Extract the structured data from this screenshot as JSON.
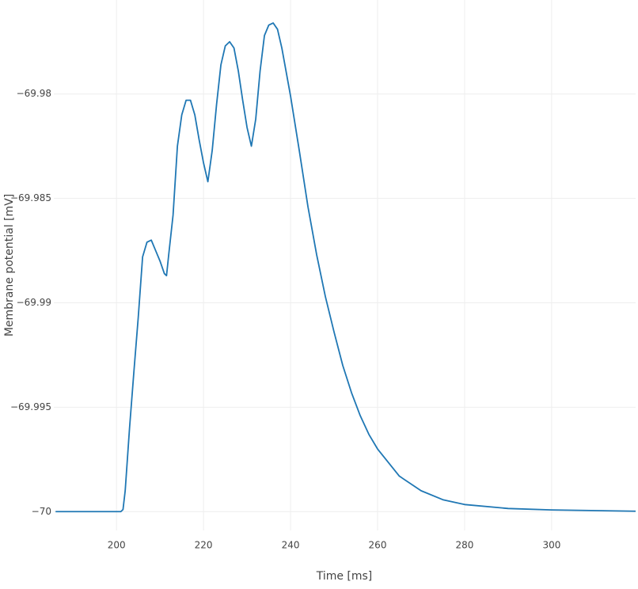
{
  "chart_data": {
    "type": "line",
    "x_label": "Time [ms]",
    "y_label": "Membrane potential [mV]",
    "x": [
      186,
      201,
      201.5,
      202,
      203,
      204,
      205,
      206,
      207,
      208,
      209,
      210,
      211,
      211.5,
      212,
      213,
      214,
      215,
      216,
      217,
      218,
      219,
      220,
      221,
      222,
      223,
      224,
      225,
      226,
      227,
      228,
      229,
      230,
      231,
      232,
      233,
      234,
      235,
      236,
      237,
      238,
      240,
      242,
      244,
      246,
      248,
      250,
      252,
      254,
      256,
      258,
      260,
      265,
      270,
      275,
      280,
      290,
      300,
      319.3
    ],
    "series": [
      {
        "color": "#1f77b4",
        "values": [
          -70,
          -70,
          -69.9999,
          -69.999,
          -69.996,
          -69.9933,
          -69.9907,
          -69.9878,
          -69.9871,
          -69.987,
          -69.9875,
          -69.988,
          -69.9886,
          -69.9887,
          -69.9877,
          -69.9858,
          -69.9825,
          -69.981,
          -69.9803,
          -69.9803,
          -69.981,
          -69.9822,
          -69.9833,
          -69.9842,
          -69.9827,
          -69.9805,
          -69.9786,
          -69.9777,
          -69.9775,
          -69.9778,
          -69.9789,
          -69.9803,
          -69.9816,
          -69.9825,
          -69.9812,
          -69.9789,
          -69.9772,
          -69.9767,
          -69.9766,
          -69.9769,
          -69.9778,
          -69.9801,
          -69.9827,
          -69.9854,
          -69.9877,
          -69.9897,
          -69.9914,
          -69.993,
          -69.9943,
          -69.9954,
          -69.9963,
          -69.997,
          -69.9983,
          -69.999,
          -69.99943,
          -69.99966,
          -69.99985,
          -69.99992,
          -69.99998
        ]
      }
    ],
    "xlim": [
      185.6,
      319.3
    ],
    "ylim": [
      -70.0009,
      -69.9755
    ],
    "xticks": [
      200,
      220,
      240,
      260,
      280,
      300
    ],
    "yticks": [
      {
        "value": -70,
        "label": "−70"
      },
      {
        "value": -69.995,
        "label": "−69.995"
      },
      {
        "value": -69.99,
        "label": "−69.99"
      },
      {
        "value": -69.985,
        "label": "−69.985"
      },
      {
        "value": -69.98,
        "label": "−69.98"
      }
    ],
    "grid": true
  }
}
